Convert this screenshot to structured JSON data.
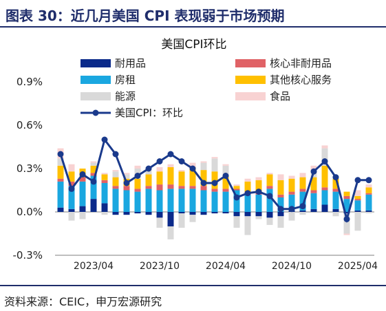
{
  "figure": {
    "header": "图表 30：近几月美国 CPI 表现弱于市场预期",
    "source": "资料来源：CEIC，申万宏源研究"
  },
  "chart_data": {
    "type": "bar",
    "title": "美国CPI环比",
    "stacked": true,
    "x": [
      "2023/01",
      "2023/02",
      "2023/03",
      "2023/04",
      "2023/05",
      "2023/06",
      "2023/07",
      "2023/08",
      "2023/09",
      "2023/10",
      "2023/11",
      "2023/12",
      "2024/01",
      "2024/02",
      "2024/03",
      "2024/04",
      "2024/05",
      "2024/06",
      "2024/07",
      "2024/08",
      "2024/09",
      "2024/10",
      "2024/11",
      "2024/12",
      "2025/01",
      "2025/02",
      "2025/03",
      "2025/04",
      "2025/05"
    ],
    "x_tick_labels": [
      "2023/04",
      "2023/10",
      "2024/04",
      "2024/10",
      "2025/04"
    ],
    "ylim": [
      -0.3,
      0.9
    ],
    "y_ticks": [
      "-0.3%",
      "0.0%",
      "0.3%",
      "0.6%",
      "0.9%"
    ],
    "legend_position": "top",
    "series": [
      {
        "name": "耐用品",
        "color": "#0b2a8a",
        "values": [
          0.03,
          0.02,
          0.04,
          0.09,
          0.06,
          -0.02,
          -0.02,
          -0.01,
          -0.02,
          -0.04,
          -0.1,
          -0.01,
          -0.02,
          -0.02,
          -0.01,
          -0.01,
          -0.03,
          -0.03,
          -0.03,
          -0.04,
          -0.03,
          0.01,
          0.01,
          0.02,
          0.05,
          0.02,
          -0.01,
          0.01,
          0.01
        ]
      },
      {
        "name": "房租",
        "color": "#1aa7e0",
        "values": [
          0.18,
          0.16,
          0.17,
          0.16,
          0.14,
          0.16,
          0.15,
          0.14,
          0.16,
          0.15,
          0.16,
          0.16,
          0.16,
          0.15,
          0.14,
          0.14,
          0.15,
          0.12,
          0.12,
          0.16,
          0.1,
          0.11,
          0.13,
          0.11,
          0.1,
          0.12,
          0.09,
          0.07,
          0.11
        ]
      },
      {
        "name": "核心非耐用品",
        "color": "#e06266",
        "values": [
          0.02,
          0.03,
          0.03,
          0.02,
          0.02,
          0.02,
          0.03,
          0.02,
          0.02,
          0.04,
          0.03,
          0.02,
          0.02,
          0.03,
          0.02,
          0.02,
          0.01,
          0.02,
          0.01,
          0.02,
          0.02,
          0.02,
          0.02,
          0.02,
          0.02,
          0.02,
          0.02,
          0.01,
          0.01
        ]
      },
      {
        "name": "其他核心服务",
        "color": "#ffc000",
        "values": [
          0.09,
          0.07,
          0.06,
          0.05,
          0.04,
          0.06,
          0.05,
          0.07,
          0.08,
          0.09,
          0.12,
          0.1,
          0.13,
          0.11,
          0.12,
          0.09,
          0.02,
          0.07,
          0.09,
          0.08,
          0.1,
          0.09,
          0.08,
          0.09,
          0.15,
          0.07,
          0.03,
          0.02,
          0.04
        ]
      },
      {
        "name": "能源",
        "color": "#d9d9d9",
        "values": [
          0.05,
          -0.06,
          -0.05,
          0.02,
          -0.02,
          0.04,
          0.03,
          0.07,
          0.03,
          -0.07,
          -0.09,
          -0.1,
          -0.05,
          0.05,
          0.09,
          0.07,
          -0.08,
          -0.13,
          -0.02,
          -0.05,
          -0.08,
          -0.06,
          -0.02,
          0.05,
          0.12,
          -0.03,
          -0.14,
          -0.13,
          -0.01
        ]
      },
      {
        "name": "食品",
        "color": "#f8d2d2",
        "values": [
          0.07,
          0.05,
          0.0,
          0.01,
          0.01,
          0.01,
          0.01,
          0.02,
          0.01,
          0.03,
          0.02,
          0.01,
          0.03,
          0.01,
          0.01,
          0.01,
          0.01,
          0.02,
          0.02,
          0.01,
          0.04,
          0.02,
          0.03,
          0.03,
          0.02,
          0.0,
          -0.01,
          0.04,
          0.02
        ]
      }
    ],
    "line": {
      "name": "美国CPI：环比",
      "color": "#1a3a8c",
      "values": [
        0.4,
        0.16,
        0.26,
        0.21,
        0.5,
        0.4,
        0.2,
        0.25,
        0.3,
        0.35,
        0.4,
        0.35,
        0.3,
        0.2,
        0.2,
        0.25,
        0.1,
        0.13,
        0.14,
        0.11,
        0.02,
        0.02,
        0.04,
        0.28,
        0.35,
        0.24,
        -0.05,
        0.22,
        0.22
      ]
    }
  }
}
